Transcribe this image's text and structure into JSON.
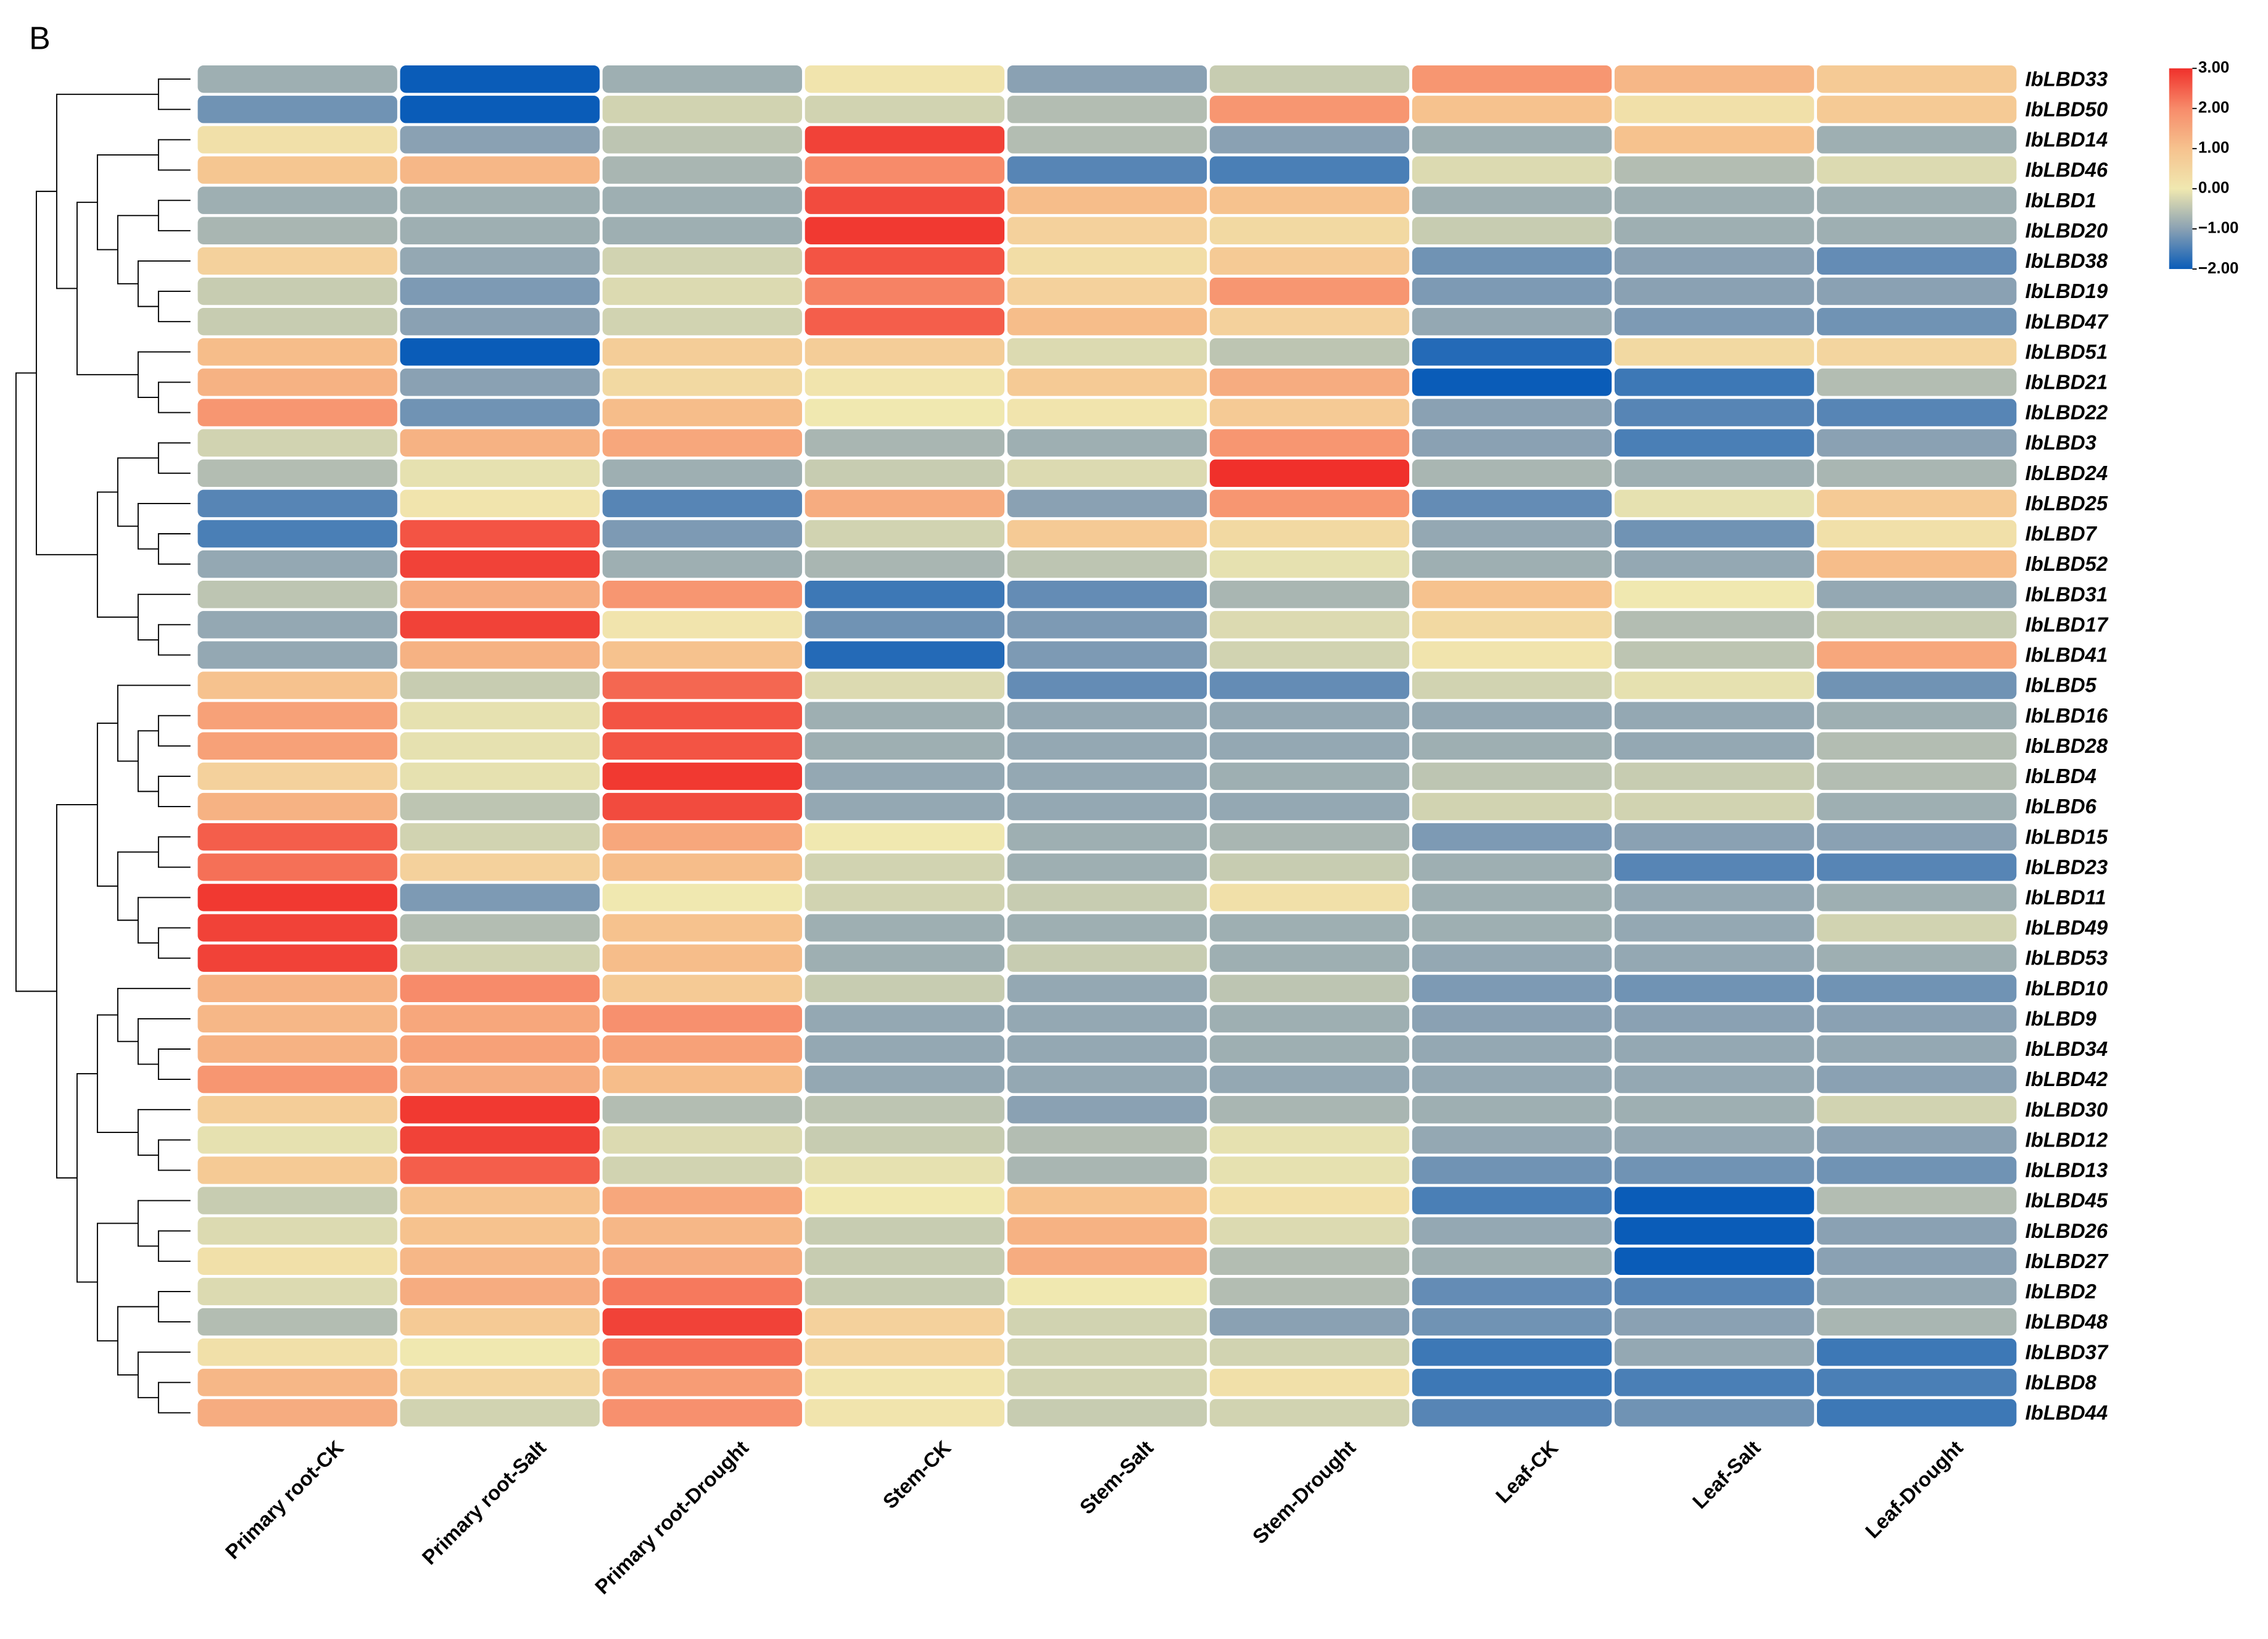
{
  "chart_data": {
    "type": "heatmap",
    "panel_label": "B",
    "columns": [
      "Primary root-CK",
      "Primary root-Salt",
      "Primary root-Drought",
      "Stem-CK",
      "Stem-Salt",
      "Stem-Drought",
      "Leaf-CK",
      "Leaf-Salt",
      "Leaf-Drought"
    ],
    "rows": [
      "IbLBD33",
      "IbLBD50",
      "IbLBD14",
      "IbLBD46",
      "IbLBD1",
      "IbLBD20",
      "IbLBD38",
      "IbLBD19",
      "IbLBD47",
      "IbLBD51",
      "IbLBD21",
      "IbLBD22",
      "IbLBD3",
      "IbLBD24",
      "IbLBD25",
      "IbLBD7",
      "IbLBD52",
      "IbLBD31",
      "IbLBD17",
      "IbLBD41",
      "IbLBD5",
      "IbLBD16",
      "IbLBD28",
      "IbLBD4",
      "IbLBD6",
      "IbLBD15",
      "IbLBD23",
      "IbLBD11",
      "IbLBD49",
      "IbLBD53",
      "IbLBD10",
      "IbLBD9",
      "IbLBD34",
      "IbLBD42",
      "IbLBD30",
      "IbLBD12",
      "IbLBD13",
      "IbLBD45",
      "IbLBD26",
      "IbLBD27",
      "IbLBD2",
      "IbLBD48",
      "IbLBD37",
      "IbLBD8",
      "IbLBD44"
    ],
    "values": [
      [
        -0.8,
        -2.0,
        -0.8,
        0.1,
        -1.0,
        -0.4,
        1.8,
        1.2,
        0.8
      ],
      [
        -1.2,
        -2.1,
        -0.3,
        -0.3,
        -0.6,
        1.8,
        1.0,
        0.2,
        0.8
      ],
      [
        0.2,
        -1.0,
        -0.5,
        2.8,
        -0.6,
        -1.0,
        -0.8,
        1.0,
        -0.8
      ],
      [
        0.9,
        1.2,
        -0.7,
        2.0,
        -1.4,
        -1.5,
        -0.2,
        -0.6,
        -0.2
      ],
      [
        -0.8,
        -0.8,
        -0.8,
        2.7,
        1.1,
        1.0,
        -0.8,
        -0.8,
        -0.8
      ],
      [
        -0.7,
        -0.8,
        -0.8,
        2.9,
        0.6,
        0.4,
        -0.4,
        -0.8,
        -0.8
      ],
      [
        0.6,
        -0.9,
        -0.3,
        2.6,
        0.3,
        0.8,
        -1.2,
        -1.0,
        -1.3
      ],
      [
        -0.4,
        -1.1,
        -0.2,
        2.1,
        0.6,
        1.8,
        -1.1,
        -1.0,
        -1.0
      ],
      [
        -0.4,
        -1.0,
        -0.3,
        2.5,
        1.1,
        0.6,
        -0.9,
        -1.1,
        -1.2
      ],
      [
        1.1,
        -2.0,
        0.7,
        0.7,
        -0.2,
        -0.5,
        -1.8,
        0.4,
        0.5
      ],
      [
        1.3,
        -1.0,
        0.4,
        0.1,
        0.8,
        1.4,
        -2.0,
        -1.6,
        -0.6
      ],
      [
        1.8,
        -1.2,
        1.1,
        0.0,
        0.1,
        0.8,
        -1.0,
        -1.4,
        -1.4
      ],
      [
        -0.3,
        1.3,
        1.5,
        -0.7,
        -0.8,
        1.8,
        -1.0,
        -1.5,
        -1.0
      ],
      [
        -0.6,
        -0.1,
        -0.8,
        -0.4,
        -0.2,
        3.0,
        -0.7,
        -0.8,
        -0.7
      ],
      [
        -1.4,
        0.1,
        -1.4,
        1.4,
        -1.0,
        1.8,
        -1.3,
        -0.1,
        0.8
      ],
      [
        -1.5,
        2.6,
        -1.1,
        -0.3,
        0.8,
        0.4,
        -0.9,
        -1.2,
        0.2
      ],
      [
        -0.9,
        2.8,
        -0.8,
        -0.7,
        -0.5,
        -0.1,
        -0.8,
        -0.9,
        1.1
      ],
      [
        -0.5,
        1.4,
        1.8,
        -1.6,
        -1.3,
        -0.7,
        1.0,
        0.0,
        -0.9
      ],
      [
        -0.9,
        2.8,
        0.1,
        -1.2,
        -1.1,
        -0.2,
        0.4,
        -0.6,
        -0.4
      ],
      [
        -0.9,
        1.3,
        1.0,
        -1.8,
        -1.1,
        -0.3,
        0.1,
        -0.5,
        1.5
      ],
      [
        1.0,
        -0.4,
        2.4,
        -0.2,
        -1.3,
        -1.3,
        -0.3,
        -0.1,
        -1.2
      ],
      [
        1.6,
        -0.1,
        2.6,
        -0.8,
        -0.9,
        -0.9,
        -0.9,
        -0.9,
        -0.8
      ],
      [
        1.6,
        -0.1,
        2.6,
        -0.8,
        -0.9,
        -0.9,
        -0.8,
        -0.9,
        -0.6
      ],
      [
        0.6,
        -0.1,
        2.9,
        -0.9,
        -0.9,
        -0.8,
        -0.5,
        -0.4,
        -0.6
      ],
      [
        1.3,
        -0.5,
        2.7,
        -0.9,
        -0.9,
        -0.9,
        -0.3,
        -0.3,
        -0.8
      ],
      [
        2.5,
        -0.3,
        1.5,
        0.0,
        -0.8,
        -0.7,
        -1.1,
        -1.0,
        -1.0
      ],
      [
        2.3,
        0.6,
        1.1,
        -0.3,
        -0.8,
        -0.4,
        -0.8,
        -1.4,
        -1.4
      ],
      [
        2.9,
        -1.1,
        0.0,
        -0.3,
        -0.4,
        0.2,
        -0.8,
        -0.9,
        -0.8
      ],
      [
        2.8,
        -0.6,
        1.0,
        -0.8,
        -0.8,
        -0.8,
        -0.8,
        -0.9,
        -0.3
      ],
      [
        2.8,
        -0.3,
        1.1,
        -0.8,
        -0.4,
        -0.8,
        -0.9,
        -0.9,
        -0.8
      ],
      [
        1.3,
        2.0,
        0.8,
        -0.4,
        -0.9,
        -0.5,
        -1.1,
        -1.2,
        -1.2
      ],
      [
        1.2,
        1.5,
        1.9,
        -0.9,
        -0.9,
        -0.8,
        -1.0,
        -1.0,
        -1.0
      ],
      [
        1.3,
        1.6,
        1.6,
        -0.9,
        -0.9,
        -0.8,
        -0.9,
        -0.9,
        -0.9
      ],
      [
        1.8,
        1.4,
        1.1,
        -0.9,
        -0.9,
        -0.9,
        -0.9,
        -0.9,
        -1.0
      ],
      [
        0.7,
        2.9,
        -0.6,
        -0.5,
        -1.0,
        -0.7,
        -0.8,
        -0.8,
        -0.3
      ],
      [
        -0.1,
        2.8,
        -0.2,
        -0.4,
        -0.6,
        -0.1,
        -0.9,
        -0.9,
        -1.0
      ],
      [
        0.8,
        2.5,
        -0.3,
        -0.1,
        -0.7,
        -0.1,
        -1.2,
        -1.2,
        -1.2
      ],
      [
        -0.4,
        1.0,
        1.5,
        0.0,
        1.0,
        0.2,
        -1.5,
        -2.1,
        -0.6
      ],
      [
        -0.2,
        1.0,
        1.2,
        -0.4,
        1.3,
        -0.2,
        -0.9,
        -2.2,
        -1.0
      ],
      [
        0.2,
        1.2,
        1.4,
        -0.4,
        1.4,
        -0.6,
        -0.8,
        -2.0,
        -1.0
      ],
      [
        -0.2,
        1.4,
        2.2,
        -0.4,
        0.0,
        -0.6,
        -1.3,
        -1.4,
        -0.9
      ],
      [
        -0.6,
        0.8,
        2.8,
        0.6,
        -0.3,
        -1.0,
        -1.2,
        -1.0,
        -0.7
      ],
      [
        0.2,
        0.0,
        2.3,
        0.5,
        -0.3,
        -0.3,
        -1.6,
        -0.9,
        -1.6
      ],
      [
        1.2,
        0.5,
        1.7,
        0.1,
        -0.3,
        0.2,
        -1.6,
        -1.5,
        -1.5
      ],
      [
        1.4,
        -0.3,
        1.9,
        0.1,
        -0.4,
        -0.3,
        -1.4,
        -1.2,
        -1.6
      ]
    ],
    "colorbar_lim": [
      -2,
      3
    ],
    "colorbar_ticks": [
      {
        "value": 3,
        "label": "3.00"
      },
      {
        "value": 2,
        "label": "2.00"
      },
      {
        "value": 1,
        "label": "1.00"
      },
      {
        "value": 0,
        "label": "0.00"
      },
      {
        "value": -1,
        "label": "−1.00"
      },
      {
        "value": -2,
        "label": "−2.00"
      }
    ],
    "colors": [
      "#0a5cb8",
      "#8aa1b3",
      "#f0e8b0",
      "#f6c28e",
      "#f78b6a",
      "#f0302b"
    ]
  }
}
